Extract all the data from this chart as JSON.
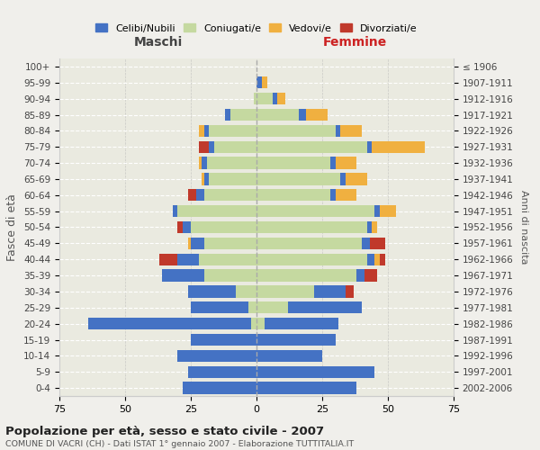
{
  "age_groups": [
    "0-4",
    "5-9",
    "10-14",
    "15-19",
    "20-24",
    "25-29",
    "30-34",
    "35-39",
    "40-44",
    "45-49",
    "50-54",
    "55-59",
    "60-64",
    "65-69",
    "70-74",
    "75-79",
    "80-84",
    "85-89",
    "90-94",
    "95-99",
    "100+"
  ],
  "birth_years": [
    "2002-2006",
    "1997-2001",
    "1992-1996",
    "1987-1991",
    "1982-1986",
    "1977-1981",
    "1972-1976",
    "1967-1971",
    "1962-1966",
    "1957-1961",
    "1952-1956",
    "1947-1951",
    "1942-1946",
    "1937-1941",
    "1932-1936",
    "1927-1931",
    "1922-1926",
    "1917-1921",
    "1912-1916",
    "1907-1911",
    "≤ 1906"
  ],
  "colors": {
    "celibi": "#4472c4",
    "coniugati": "#c5d9a0",
    "vedovi": "#f0b040",
    "divorziati": "#c0392b"
  },
  "male": {
    "celibi": [
      28,
      26,
      30,
      25,
      62,
      22,
      18,
      16,
      8,
      5,
      3,
      2,
      3,
      2,
      2,
      2,
      2,
      2,
      0,
      0,
      0
    ],
    "coniugati": [
      0,
      0,
      0,
      0,
      2,
      3,
      8,
      20,
      22,
      20,
      25,
      30,
      20,
      18,
      19,
      16,
      18,
      10,
      1,
      0,
      0
    ],
    "vedovi": [
      0,
      0,
      0,
      0,
      0,
      0,
      0,
      0,
      0,
      1,
      0,
      0,
      0,
      1,
      1,
      0,
      2,
      0,
      0,
      0,
      0
    ],
    "divorziati": [
      0,
      0,
      0,
      0,
      0,
      0,
      0,
      0,
      7,
      0,
      2,
      0,
      3,
      0,
      0,
      4,
      0,
      0,
      0,
      0,
      0
    ]
  },
  "female": {
    "celibi": [
      38,
      45,
      25,
      30,
      28,
      28,
      12,
      3,
      3,
      3,
      2,
      2,
      2,
      2,
      2,
      2,
      2,
      3,
      2,
      2,
      0
    ],
    "coniugati": [
      0,
      0,
      0,
      0,
      3,
      12,
      22,
      38,
      42,
      40,
      42,
      45,
      28,
      32,
      28,
      42,
      30,
      16,
      6,
      0,
      0
    ],
    "vedovi": [
      0,
      0,
      0,
      0,
      0,
      0,
      0,
      0,
      2,
      0,
      2,
      6,
      8,
      8,
      8,
      20,
      8,
      8,
      3,
      2,
      0
    ],
    "divorziati": [
      0,
      0,
      0,
      0,
      0,
      0,
      3,
      5,
      2,
      6,
      0,
      0,
      0,
      0,
      0,
      0,
      0,
      0,
      0,
      0,
      0
    ]
  },
  "title": "Popolazione per età, sesso e stato civile - 2007",
  "subtitle": "COMUNE DI VACRI (CH) - Dati ISTAT 1° gennaio 2007 - Elaborazione TUTTITALIA.IT",
  "xlabel_left": "Maschi",
  "xlabel_right": "Femmine",
  "ylabel_left": "Fasce di età",
  "ylabel_right": "Anni di nascita",
  "xlim": 75,
  "legend_labels": [
    "Celibi/Nubili",
    "Coniugati/e",
    "Vedovi/e",
    "Divorziati/e"
  ],
  "bg_color": "#f0efeb",
  "plot_bg": "#eaeae0"
}
